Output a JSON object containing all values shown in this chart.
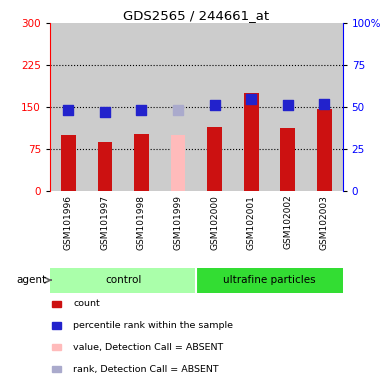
{
  "title": "GDS2565 / 244661_at",
  "samples": [
    "GSM101996",
    "GSM101997",
    "GSM101998",
    "GSM101999",
    "GSM102000",
    "GSM102001",
    "GSM102002",
    "GSM102003"
  ],
  "count_values": [
    100,
    88,
    101,
    null,
    114,
    175,
    113,
    147
  ],
  "count_absent_values": [
    null,
    null,
    null,
    100,
    null,
    null,
    null,
    null
  ],
  "percentile_values": [
    48,
    47,
    48,
    null,
    51,
    55,
    51,
    52
  ],
  "percentile_absent_values": [
    null,
    null,
    null,
    48,
    null,
    null,
    null,
    null
  ],
  "ylim_left": [
    0,
    300
  ],
  "ylim_right": [
    0,
    100
  ],
  "yticks_left": [
    0,
    75,
    150,
    225,
    300
  ],
  "yticks_right": [
    0,
    25,
    50,
    75,
    100
  ],
  "ytick_right_labels": [
    "0",
    "25",
    "50",
    "75",
    "100%"
  ],
  "bar_color_red": "#cc1111",
  "bar_color_pink": "#ffbbbb",
  "dot_color_blue": "#2222cc",
  "dot_color_lightblue": "#aaaacc",
  "bg_col": "#cccccc",
  "bg_control": "#aaffaa",
  "bg_ultrafine": "#33dd33",
  "legend_items": [
    {
      "color": "#cc1111",
      "label": "count"
    },
    {
      "color": "#2222cc",
      "label": "percentile rank within the sample"
    },
    {
      "color": "#ffbbbb",
      "label": "value, Detection Call = ABSENT"
    },
    {
      "color": "#aaaacc",
      "label": "rank, Detection Call = ABSENT"
    }
  ],
  "bar_width": 0.4,
  "dot_size": 45
}
